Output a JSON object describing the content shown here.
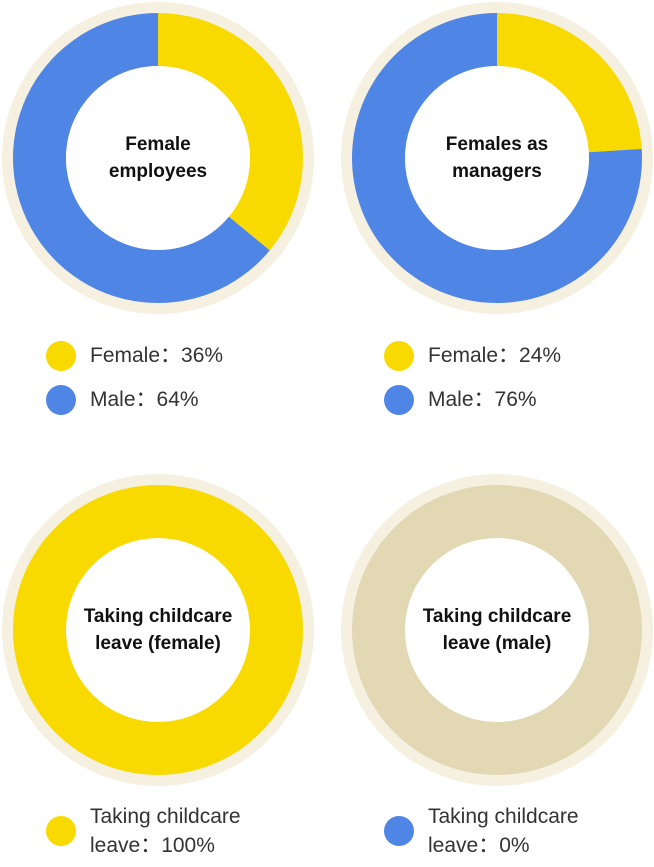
{
  "colors": {
    "female": "#F9DA00",
    "male": "#4F86E6",
    "empty": "#E2D8B4",
    "outer_ring": "#F5F0DF",
    "center": "#FFFFFF"
  },
  "chart_data": [
    {
      "type": "pie",
      "title": "Female\nemployees",
      "series": [
        {
          "name": "Female",
          "value": 36,
          "color": "#F9DA00"
        },
        {
          "name": "Male",
          "value": 64,
          "color": "#4F86E6"
        }
      ],
      "legend": [
        {
          "label": "Female：36%",
          "color": "#F9DA00"
        },
        {
          "label": "Male：64%",
          "color": "#4F86E6"
        }
      ]
    },
    {
      "type": "pie",
      "title": "Females as\nmanagers",
      "series": [
        {
          "name": "Female",
          "value": 24,
          "color": "#F9DA00"
        },
        {
          "name": "Male",
          "value": 76,
          "color": "#4F86E6"
        }
      ],
      "legend": [
        {
          "label": "Female：24%",
          "color": "#F9DA00"
        },
        {
          "label": "Male：76%",
          "color": "#4F86E6"
        }
      ]
    },
    {
      "type": "pie",
      "title": "Taking childcare\nleave (female)",
      "series": [
        {
          "name": "Taking childcare leave",
          "value": 100,
          "color": "#F9DA00"
        }
      ],
      "legend": [
        {
          "label": "Taking childcare\nleave：100%",
          "color": "#F9DA00"
        }
      ]
    },
    {
      "type": "pie",
      "title": "Taking childcare\nleave (male)",
      "series": [
        {
          "name": "Taking childcare leave",
          "value": 0,
          "color": "#4F86E6"
        }
      ],
      "legend": [
        {
          "label": "Taking childcare\nleave：0%",
          "color": "#4F86E6"
        }
      ]
    }
  ]
}
